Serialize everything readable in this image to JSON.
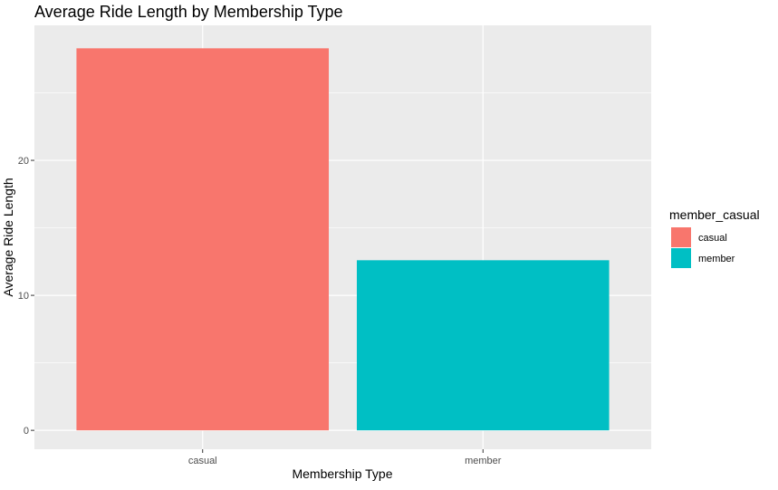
{
  "chart_data": {
    "type": "bar",
    "title": "Average Ride Length by Membership Type",
    "xlabel": "Membership Type",
    "ylabel": "Average Ride Length",
    "categories": [
      "casual",
      "member"
    ],
    "values": [
      28.3,
      12.6
    ],
    "colors": [
      "#F8766D",
      "#00BFC4"
    ],
    "ylim": [
      -1.4,
      30.0
    ],
    "yticks": [
      0,
      10,
      20
    ],
    "ytick_labels": [
      "0",
      "10",
      "20"
    ],
    "grid": true,
    "panel_background": "#EBEBEB",
    "grid_color": "#FFFFFF",
    "legend": {
      "title": "member_casual",
      "placement": "right",
      "entries": [
        {
          "label": "casual",
          "color": "#F8766D"
        },
        {
          "label": "member",
          "color": "#00BFC4"
        }
      ]
    }
  }
}
